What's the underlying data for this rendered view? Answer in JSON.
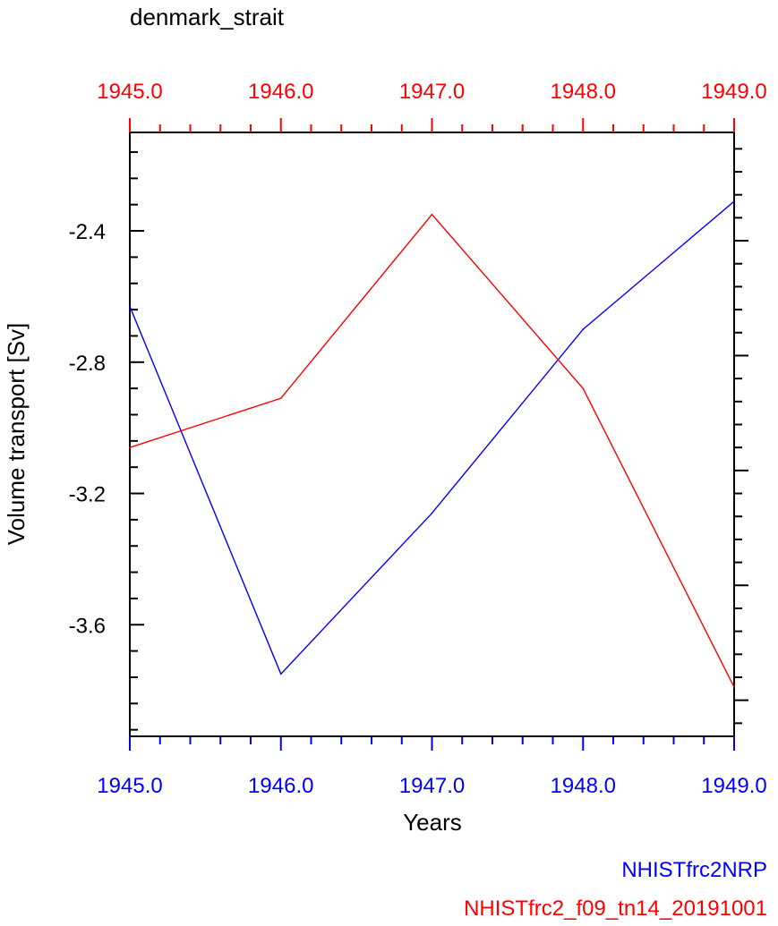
{
  "chart_data": {
    "type": "line",
    "title": "denmark_strait",
    "xlabel": "Years",
    "ylabel": "Volume transport [Sv]",
    "x": [
      1945.0,
      1946.0,
      1947.0,
      1948.0,
      1949.0
    ],
    "x_tick_labels": [
      "1945.0",
      "1946.0",
      "1947.0",
      "1948.0",
      "1949.0"
    ],
    "y_tick_labels": [
      "-2.4",
      "-2.8",
      "-3.2",
      "-3.6"
    ],
    "y_ticks": [
      -2.4,
      -2.8,
      -3.2,
      -3.6
    ],
    "xlim": [
      1945.0,
      1949.0
    ],
    "ylim": [
      -3.94,
      -2.1
    ],
    "top_axis_x": [
      1945.0,
      1949.0
    ],
    "right_axis_y": [
      -3.94,
      -2.1
    ],
    "grid": false,
    "legend_placement": "bottom-right",
    "series": [
      {
        "name": "NHISTfrc2NRP",
        "color": "#0000ff",
        "values": [
          -2.63,
          -3.75,
          -3.26,
          -2.7,
          -2.31
        ]
      },
      {
        "name": "NHISTfrc2_f09_tn14_20191001",
        "color": "#ff0000",
        "values": [
          -3.06,
          -2.91,
          -2.35,
          -2.88,
          -3.79
        ]
      }
    ]
  }
}
